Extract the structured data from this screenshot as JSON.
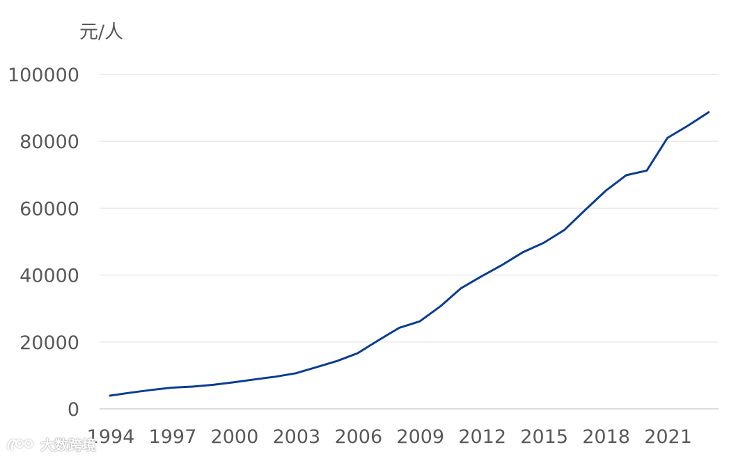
{
  "chart_data": {
    "type": "line",
    "title": "",
    "xlabel": "",
    "ylabel": "元/人",
    "ylim": [
      0,
      100000
    ],
    "yticks": [
      0,
      20000,
      40000,
      60000,
      80000,
      100000
    ],
    "xticks": [
      1994,
      1997,
      2000,
      2003,
      2006,
      2009,
      2012,
      2015,
      2018,
      2021
    ],
    "grid": "horizontal",
    "series": [
      {
        "color": "#0a3d91",
        "x": [
          1994,
          1995,
          1996,
          1997,
          1998,
          1999,
          2000,
          2001,
          2002,
          2003,
          2004,
          2005,
          2006,
          2007,
          2008,
          2009,
          2010,
          2011,
          2012,
          2013,
          2014,
          2015,
          2016,
          2017,
          2018,
          2019,
          2020,
          2021,
          2022,
          2023
        ],
        "y": [
          3950,
          4850,
          5650,
          6350,
          6650,
          7200,
          7950,
          8800,
          9600,
          10650,
          12450,
          14300,
          16650,
          20500,
          24200,
          26150,
          30650,
          36050,
          39650,
          43050,
          46850,
          49600,
          53450,
          59350,
          65150,
          69850,
          71250,
          81000,
          84700,
          88700
        ]
      }
    ]
  },
  "watermark": {
    "text": "大数跨境"
  }
}
